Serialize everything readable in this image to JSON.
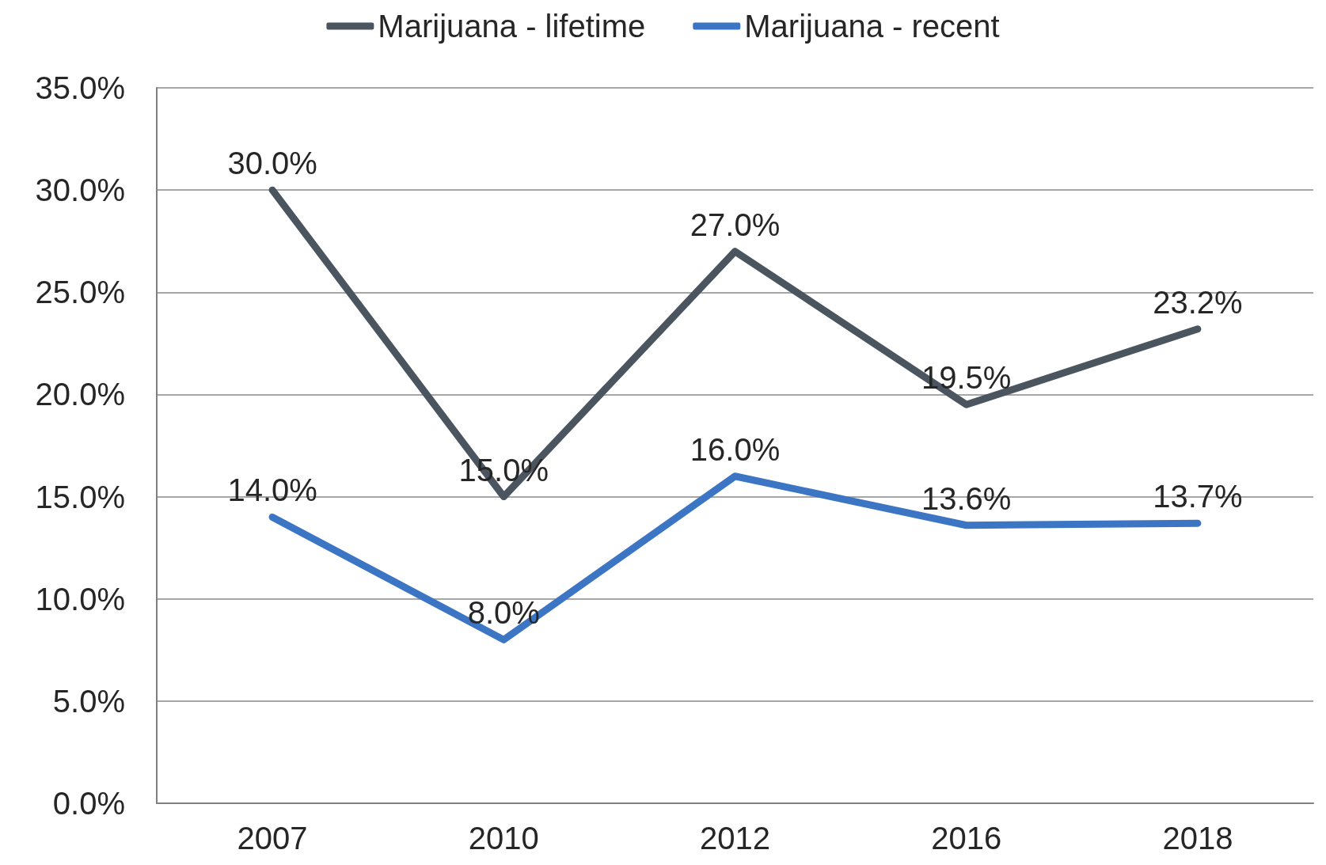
{
  "chart_data": {
    "type": "line",
    "categories": [
      "2007",
      "2010",
      "2012",
      "2016",
      "2018"
    ],
    "series": [
      {
        "name": "Marijuana - lifetime",
        "color": "#4a5560",
        "values": [
          30.0,
          15.0,
          27.0,
          19.5,
          23.2
        ],
        "value_labels": [
          "30.0%",
          "15.0%",
          "27.0%",
          "19.5%",
          "23.2%"
        ]
      },
      {
        "name": "Marijuana - recent",
        "color": "#3b75c4",
        "values": [
          14.0,
          8.0,
          16.0,
          13.6,
          13.7
        ],
        "value_labels": [
          "14.0%",
          "8.0%",
          "16.0%",
          "13.6%",
          "13.7%"
        ]
      }
    ],
    "ylim": [
      0,
      35
    ],
    "yticks": [
      {
        "value": 0,
        "label": "0.0%"
      },
      {
        "value": 5,
        "label": "5.0%"
      },
      {
        "value": 10,
        "label": "10.0%"
      },
      {
        "value": 15,
        "label": "15.0%"
      },
      {
        "value": 20,
        "label": "20.0%"
      },
      {
        "value": 25,
        "label": "25.0%"
      },
      {
        "value": 30,
        "label": "30.0%"
      },
      {
        "value": 35,
        "label": "35.0%"
      }
    ],
    "grid": "y",
    "legend": "top",
    "marker": "none",
    "line_style": "solid"
  }
}
